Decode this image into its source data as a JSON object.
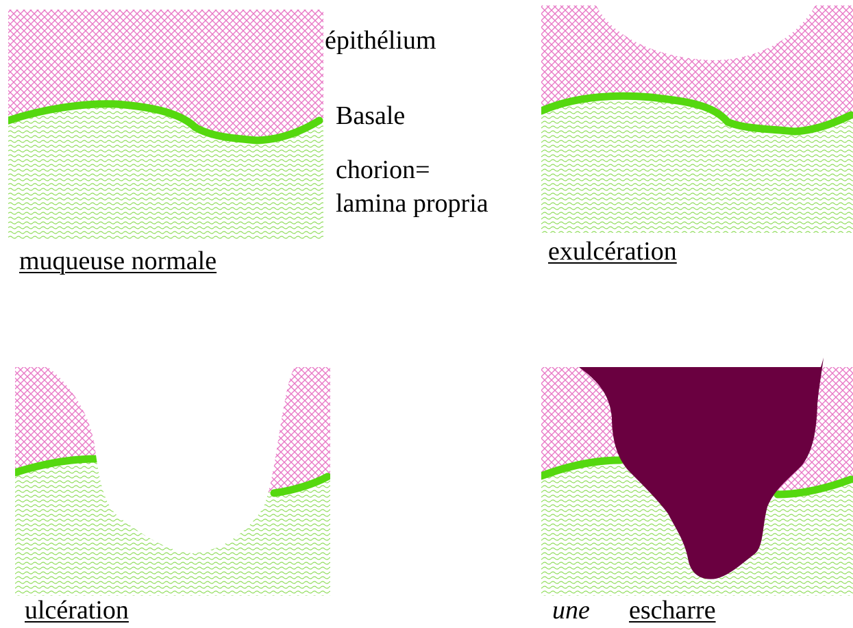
{
  "colors": {
    "epithelium_pattern": "#e879c6",
    "chorion_pattern": "#8fdc5a",
    "basale_line": "#55d80f",
    "escharre": "#6a0040",
    "background": "#ffffff"
  },
  "labels": {
    "epithelium": "épithélium",
    "basale": "Basale",
    "chorion_line1": "chorion=",
    "chorion_line2": "lamina propria"
  },
  "panels": [
    {
      "id": "normal",
      "caption": "muqueuse normale"
    },
    {
      "id": "exulceration",
      "caption": "exulcération"
    },
    {
      "id": "ulceration",
      "caption": "ulcération"
    },
    {
      "id": "escharre",
      "caption_prefix": "une",
      "caption": "escharre"
    }
  ]
}
